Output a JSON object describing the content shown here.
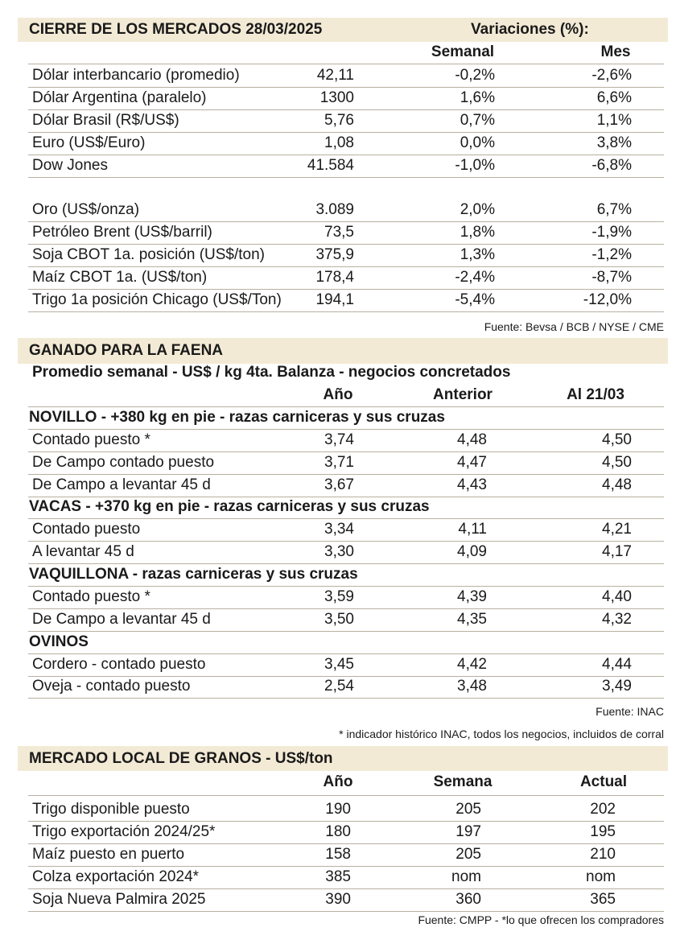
{
  "markets": {
    "title": "CIERRE DE LOS MERCADOS  28/03/2025",
    "variations_label": "Variaciones (%):",
    "columns": [
      "Semanal",
      "Mes"
    ],
    "groups": [
      {
        "rows": [
          [
            "Dólar interbancario (promedio)",
            "42,11",
            "-0,2%",
            "-2,6%"
          ],
          [
            "Dólar Argentina (paralelo)",
            "1300",
            "1,6%",
            "6,6%"
          ],
          [
            "Dólar Brasil (R$/US$)",
            "5,76",
            "0,7%",
            "1,1%"
          ],
          [
            "Euro (US$/Euro)",
            "1,08",
            "0,0%",
            "3,8%"
          ],
          [
            "Dow Jones",
            "41.584",
            "-1,0%",
            "-6,8%"
          ]
        ]
      },
      {
        "rows": [
          [
            "Oro (US$/onza)",
            "3.089",
            "2,0%",
            "6,7%"
          ],
          [
            "Petróleo Brent (US$/barril)",
            "73,5",
            "1,8%",
            "-1,9%"
          ],
          [
            "Soja CBOT 1a. posición (US$/ton)",
            "375,9",
            "1,3%",
            "-1,2%"
          ],
          [
            "Maíz CBOT 1a. (US$/ton)",
            "178,4",
            "-2,4%",
            "-8,7%"
          ],
          [
            "Trigo 1a posición Chicago (US$/Ton)",
            "194,1",
            "-5,4%",
            "-12,0%"
          ]
        ]
      }
    ],
    "source": "Fuente: Bevsa / BCB / NYSE / CME"
  },
  "cattle": {
    "title": "GANADO PARA LA FAENA",
    "subtitle": "Promedio semanal - US$ / kg 4ta. Balanza - negocios concretados",
    "columns": [
      "Año",
      "Anterior",
      "Al 21/03"
    ],
    "groups": [
      {
        "title": "NOVILLO - +380 kg en pie - razas carniceras y sus cruzas",
        "rows": [
          [
            "Contado puesto *",
            "3,74",
            "4,48",
            "4,50"
          ],
          [
            "De Campo contado puesto",
            "3,71",
            "4,47",
            "4,50"
          ],
          [
            "De Campo a levantar 45 d",
            "3,67",
            "4,43",
            "4,48"
          ]
        ]
      },
      {
        "title": "VACAS - +370 kg en pie - razas carniceras y sus cruzas",
        "rows": [
          [
            "Contado puesto",
            "3,34",
            "4,11",
            "4,21"
          ],
          [
            "A levantar 45 d",
            "3,30",
            "4,09",
            "4,17"
          ]
        ]
      },
      {
        "title": "VAQUILLONA - razas carniceras y sus cruzas",
        "rows": [
          [
            "Contado puesto *",
            "3,59",
            "4,39",
            "4,40"
          ],
          [
            "De Campo a levantar 45 d",
            "3,50",
            "4,35",
            "4,32"
          ]
        ]
      },
      {
        "title": "OVINOS",
        "rows": [
          [
            "Cordero - contado puesto",
            "3,45",
            "4,42",
            "4,44"
          ],
          [
            "Oveja - contado puesto",
            "2,54",
            "3,48",
            "3,49"
          ]
        ]
      }
    ],
    "source": "Fuente: INAC",
    "note": "* indicador histórico INAC, todos los negocios, incluidos de corral"
  },
  "grains": {
    "title": "MERCADO LOCAL DE GRANOS - US$/ton",
    "columns": [
      "Año",
      "Semana",
      "Actual"
    ],
    "rows": [
      [
        "Trigo disponible puesto",
        "190",
        "205",
        "202"
      ],
      [
        "Trigo exportación 2024/25*",
        "180",
        "197",
        "195"
      ],
      [
        "Maíz puesto en puerto",
        "158",
        "205",
        "210"
      ],
      [
        "Colza exportación 2024*",
        "385",
        "nom",
        "nom"
      ],
      [
        "Soja Nueva Palmira 2025",
        "390",
        "360",
        "365"
      ]
    ],
    "source": "Fuente: CMPP - *lo que ofrecen los compradores"
  }
}
